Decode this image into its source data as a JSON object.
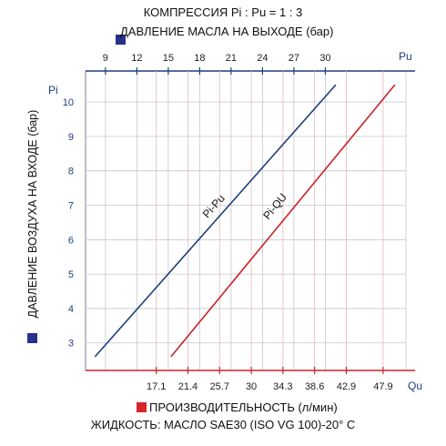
{
  "title": "КОМПРЕССИЯ Pi : Pu = 1 : 3",
  "top_axis_title": "ДАВЛЕНИЕ МАСЛА НА ВЫХОДЕ (бар)",
  "left_axis_title": "ДАВЛЕНИЕ ВОЗДУХА НА ВХОДЕ (бар)",
  "bottom_axis_title": "ПРОИЗВОДИТЕЛЬНОСТЬ (л/мин)",
  "fluid_note": "ЖИДКОСТЬ:  МАСЛО SAE30 (ISO VG 100)-20° C",
  "colors": {
    "blue": "#1c3f7a",
    "red": "#c8232b",
    "square_blue": "#28308c",
    "square_red": "#d8262c",
    "axis_text": "#1c3f7a"
  },
  "chart_data": {
    "type": "line",
    "y_label": "Pi",
    "y_ticks": [
      "3",
      "4",
      "5",
      "6",
      "7",
      "8",
      "9",
      "10"
    ],
    "ylim": [
      2.2,
      10.9
    ],
    "top_axis": {
      "label": "Pu",
      "ticks": [
        "9",
        "12",
        "15",
        "18",
        "21",
        "24",
        "27",
        "30"
      ],
      "range": [
        7.1,
        37.7
      ]
    },
    "bottom_axis": {
      "label": "Qu",
      "ticks": [
        "17.1",
        "21.4",
        "25.7",
        "30",
        "34.3",
        "38.6",
        "42.9",
        "47.9"
      ],
      "range": [
        7.5,
        51
      ]
    },
    "grid": true,
    "series": [
      {
        "name": "Pi-Pu",
        "axis": "top",
        "points": [
          [
            8,
            2.6
          ],
          [
            31,
            10.5
          ]
        ],
        "label_at": [
          19.6,
          6.9
        ]
      },
      {
        "name": "Pi-QU",
        "axis": "bottom",
        "points": [
          [
            19.1,
            2.6
          ],
          [
            49.5,
            10.5
          ]
        ],
        "label_at": [
          33.6,
          6.9
        ]
      }
    ]
  }
}
